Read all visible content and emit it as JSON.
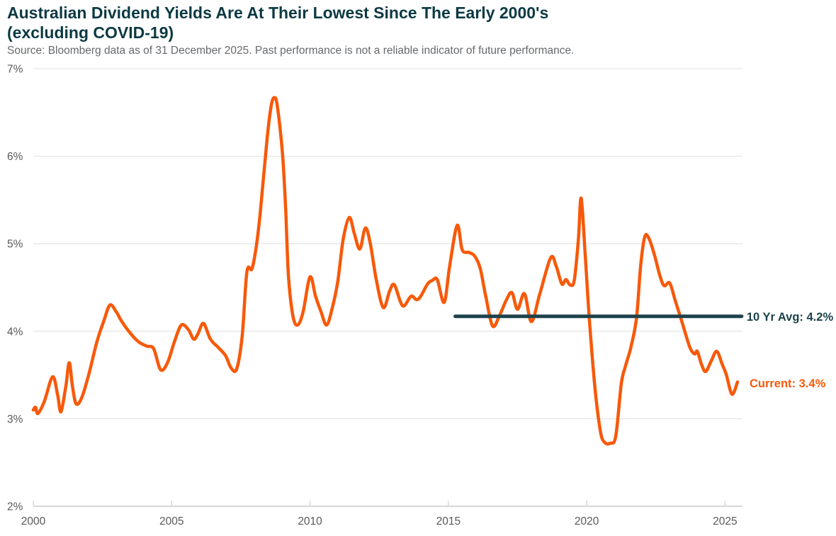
{
  "header": {
    "title_line1": "Australian Dividend Yields Are At Their Lowest Since The Early 2000's",
    "title_line2": "(excluding COVID-19)",
    "source": "Source: Bloomberg data as of 31 December 2025. Past performance is not a reliable indicator of future performance."
  },
  "colors": {
    "title": "#0c3943",
    "source_text": "#66696c",
    "axis_text": "#58595b",
    "gridline": "#e6e6e6",
    "axis_line": "#d9d9d9",
    "tick_mark": "#cfcfcf",
    "series": "#f7590a",
    "avg_line": "#1d424b"
  },
  "chart_data": {
    "type": "line",
    "title": "Australian Dividend Yields Are At Their Lowest Since The Early 2000's (excluding COVID-19)",
    "subtitle": "Source: Bloomberg data as of 31 December 2025. Past performance is not a reliable indicator of future performance.",
    "x_axis": {
      "ticks": [
        2000,
        2005,
        2010,
        2015,
        2020,
        2025
      ],
      "range": [
        2000,
        2025.63
      ],
      "grid": false
    },
    "y_axis": {
      "tick_values": [
        2,
        3,
        4,
        5,
        6,
        7
      ],
      "tick_suffix": "%",
      "range": [
        2,
        7
      ],
      "grid": true
    },
    "legend": "none",
    "series": [
      {
        "name": "Australian dividend yield",
        "color": "#f7590a",
        "points": [
          [
            2000.0,
            3.1
          ],
          [
            2000.08,
            3.13
          ],
          [
            2000.17,
            3.06
          ],
          [
            2000.4,
            3.2
          ],
          [
            2000.7,
            3.48
          ],
          [
            2000.88,
            3.27
          ],
          [
            2001.0,
            3.08
          ],
          [
            2001.18,
            3.38
          ],
          [
            2001.3,
            3.64
          ],
          [
            2001.42,
            3.36
          ],
          [
            2001.55,
            3.17
          ],
          [
            2001.75,
            3.24
          ],
          [
            2002.0,
            3.5
          ],
          [
            2002.3,
            3.88
          ],
          [
            2002.55,
            4.12
          ],
          [
            2002.77,
            4.3
          ],
          [
            2003.0,
            4.22
          ],
          [
            2003.2,
            4.11
          ],
          [
            2003.5,
            3.98
          ],
          [
            2003.8,
            3.88
          ],
          [
            2004.1,
            3.83
          ],
          [
            2004.35,
            3.8
          ],
          [
            2004.6,
            3.56
          ],
          [
            2004.85,
            3.64
          ],
          [
            2005.1,
            3.88
          ],
          [
            2005.35,
            4.07
          ],
          [
            2005.6,
            4.02
          ],
          [
            2005.8,
            3.91
          ],
          [
            2005.95,
            3.97
          ],
          [
            2006.15,
            4.09
          ],
          [
            2006.4,
            3.91
          ],
          [
            2006.7,
            3.81
          ],
          [
            2006.95,
            3.72
          ],
          [
            2007.15,
            3.58
          ],
          [
            2007.35,
            3.57
          ],
          [
            2007.55,
            3.95
          ],
          [
            2007.72,
            4.68
          ],
          [
            2007.9,
            4.71
          ],
          [
            2008.05,
            4.95
          ],
          [
            2008.2,
            5.35
          ],
          [
            2008.45,
            6.2
          ],
          [
            2008.6,
            6.58
          ],
          [
            2008.72,
            6.67
          ],
          [
            2008.82,
            6.57
          ],
          [
            2009.0,
            6.05
          ],
          [
            2009.12,
            5.4
          ],
          [
            2009.22,
            4.64
          ],
          [
            2009.38,
            4.18
          ],
          [
            2009.55,
            4.07
          ],
          [
            2009.75,
            4.22
          ],
          [
            2010.0,
            4.62
          ],
          [
            2010.2,
            4.4
          ],
          [
            2010.4,
            4.22
          ],
          [
            2010.6,
            4.07
          ],
          [
            2010.8,
            4.26
          ],
          [
            2011.0,
            4.56
          ],
          [
            2011.2,
            5.05
          ],
          [
            2011.42,
            5.3
          ],
          [
            2011.6,
            5.12
          ],
          [
            2011.8,
            4.94
          ],
          [
            2012.0,
            5.18
          ],
          [
            2012.18,
            5.0
          ],
          [
            2012.4,
            4.58
          ],
          [
            2012.65,
            4.27
          ],
          [
            2012.88,
            4.46
          ],
          [
            2013.05,
            4.53
          ],
          [
            2013.35,
            4.29
          ],
          [
            2013.65,
            4.4
          ],
          [
            2013.85,
            4.36
          ],
          [
            2014.0,
            4.4
          ],
          [
            2014.25,
            4.54
          ],
          [
            2014.42,
            4.58
          ],
          [
            2014.6,
            4.59
          ],
          [
            2014.85,
            4.33
          ],
          [
            2015.05,
            4.75
          ],
          [
            2015.32,
            5.21
          ],
          [
            2015.5,
            4.93
          ],
          [
            2015.75,
            4.9
          ],
          [
            2015.95,
            4.86
          ],
          [
            2016.15,
            4.72
          ],
          [
            2016.35,
            4.4
          ],
          [
            2016.6,
            4.06
          ],
          [
            2016.85,
            4.18
          ],
          [
            2017.1,
            4.36
          ],
          [
            2017.3,
            4.44
          ],
          [
            2017.5,
            4.25
          ],
          [
            2017.75,
            4.43
          ],
          [
            2018.0,
            4.11
          ],
          [
            2018.3,
            4.42
          ],
          [
            2018.7,
            4.84
          ],
          [
            2018.9,
            4.74
          ],
          [
            2019.1,
            4.54
          ],
          [
            2019.25,
            4.59
          ],
          [
            2019.4,
            4.53
          ],
          [
            2019.55,
            4.58
          ],
          [
            2019.7,
            5.05
          ],
          [
            2019.8,
            5.52
          ],
          [
            2019.95,
            4.85
          ],
          [
            2020.1,
            4.12
          ],
          [
            2020.3,
            3.35
          ],
          [
            2020.5,
            2.85
          ],
          [
            2020.65,
            2.73
          ],
          [
            2020.85,
            2.72
          ],
          [
            2021.05,
            2.8
          ],
          [
            2021.25,
            3.4
          ],
          [
            2021.4,
            3.6
          ],
          [
            2021.6,
            3.82
          ],
          [
            2021.8,
            4.15
          ],
          [
            2021.95,
            4.75
          ],
          [
            2022.1,
            5.08
          ],
          [
            2022.25,
            5.06
          ],
          [
            2022.45,
            4.87
          ],
          [
            2022.65,
            4.63
          ],
          [
            2022.8,
            4.52
          ],
          [
            2023.0,
            4.55
          ],
          [
            2023.2,
            4.35
          ],
          [
            2023.42,
            4.13
          ],
          [
            2023.6,
            3.94
          ],
          [
            2023.75,
            3.8
          ],
          [
            2023.9,
            3.74
          ],
          [
            2024.0,
            3.77
          ],
          [
            2024.15,
            3.62
          ],
          [
            2024.3,
            3.54
          ],
          [
            2024.5,
            3.66
          ],
          [
            2024.7,
            3.77
          ],
          [
            2024.9,
            3.62
          ],
          [
            2025.05,
            3.5
          ],
          [
            2025.25,
            3.28
          ],
          [
            2025.45,
            3.42
          ]
        ]
      }
    ],
    "annotations": {
      "avg_line": {
        "label": "10 Yr Avg: 4.2%",
        "value": 4.17,
        "start_year": 2015.25,
        "end_year": 2025.6,
        "color": "#1d424b"
      },
      "current": {
        "label": "Current: 3.4%",
        "value": 3.4,
        "year": 2025.45,
        "color": "#f7590a"
      }
    }
  }
}
